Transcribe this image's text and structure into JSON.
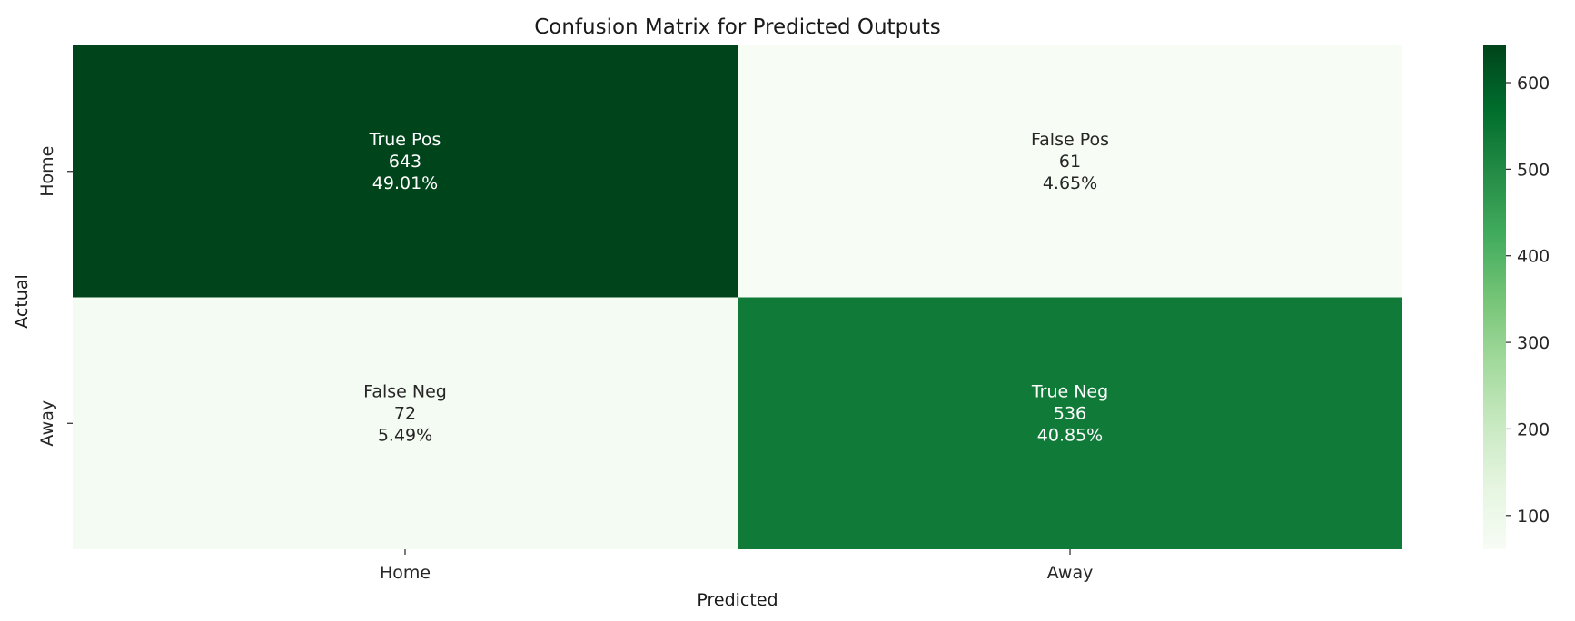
{
  "chart_data": {
    "type": "heatmap",
    "title": "Confusion Matrix for Predicted Outputs",
    "xlabel": "Predicted",
    "ylabel": "Actual",
    "x_categories": [
      "Home",
      "Away"
    ],
    "y_categories": [
      "Home",
      "Away"
    ],
    "values": [
      [
        643,
        61
      ],
      [
        72,
        536
      ]
    ],
    "cell_labels": [
      [
        {
          "name": "True Pos",
          "count": "643",
          "percent": "49.01%"
        },
        {
          "name": "False Pos",
          "count": "61",
          "percent": "4.65%"
        }
      ],
      [
        {
          "name": "False Neg",
          "count": "72",
          "percent": "5.49%"
        },
        {
          "name": "True Neg",
          "count": "536",
          "percent": "40.85%"
        }
      ]
    ],
    "colormap": "Greens",
    "colorbar": {
      "range": [
        61,
        643
      ],
      "ticks": [
        100,
        200,
        300,
        400,
        500,
        600
      ]
    }
  }
}
